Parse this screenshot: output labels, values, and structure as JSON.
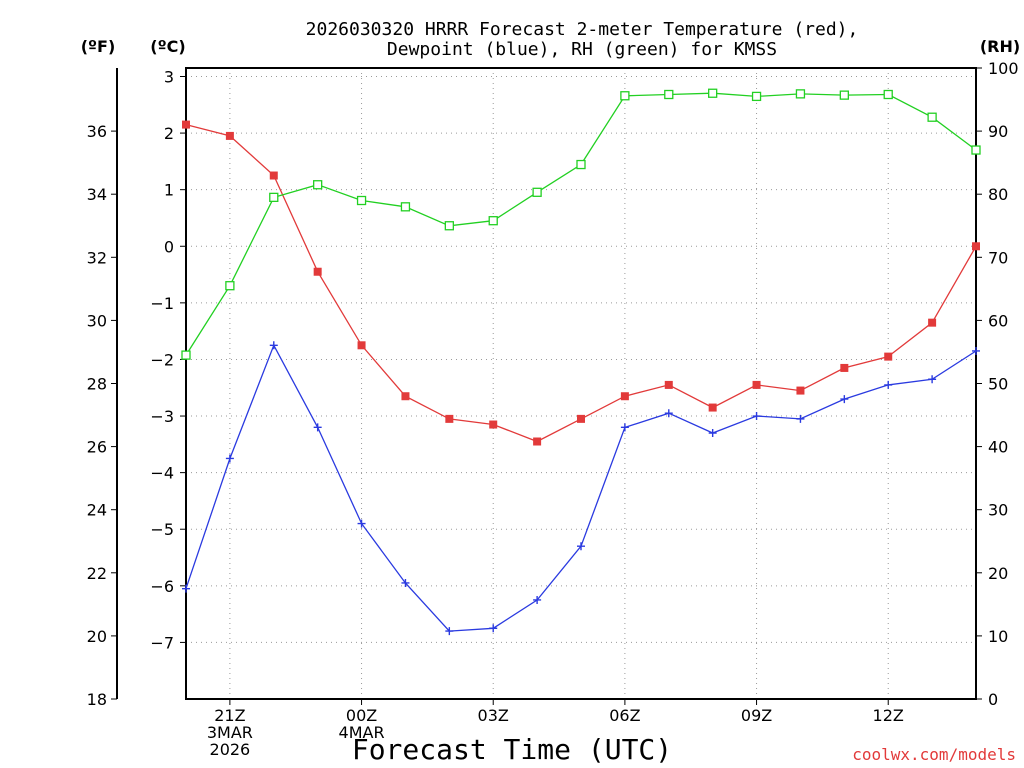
{
  "chart_data": {
    "type": "line",
    "title_line1": "2026030320 HRRR Forecast 2-meter Temperature (red),",
    "title_line2": "Dewpoint (blue), RH (green) for KMSS",
    "xlabel": "Forecast Time (UTC)",
    "credit": "coolwx.com/models",
    "units": {
      "left_outer": "(ºF)",
      "left_inner": "(ºC)",
      "right": "(RH)"
    },
    "x_hours": [
      20,
      21,
      22,
      23,
      24,
      25,
      26,
      27,
      28,
      29,
      30,
      31,
      32,
      33,
      34,
      35,
      36,
      37,
      38
    ],
    "x_ticks": [
      {
        "hour": 21,
        "lines": [
          "21Z",
          "3MAR",
          "2026"
        ]
      },
      {
        "hour": 24,
        "lines": [
          "00Z",
          "4MAR"
        ]
      },
      {
        "hour": 27,
        "lines": [
          "03Z"
        ]
      },
      {
        "hour": 30,
        "lines": [
          "06Z"
        ]
      },
      {
        "hour": 33,
        "lines": [
          "09Z"
        ]
      },
      {
        "hour": 36,
        "lines": [
          "12Z"
        ]
      }
    ],
    "celsius_axis": {
      "ylim": [
        -8.0,
        3.15
      ],
      "ticks": [
        3,
        2,
        1,
        0,
        -1,
        -2,
        -3,
        -4,
        -5,
        -6,
        -7
      ]
    },
    "fahrenheit_axis": {
      "ylim": [
        18,
        38
      ],
      "ticks": [
        18,
        20,
        22,
        24,
        26,
        28,
        30,
        32,
        34,
        36
      ]
    },
    "rh_axis": {
      "ylim": [
        0,
        100
      ],
      "ticks": [
        0,
        10,
        20,
        30,
        40,
        50,
        60,
        70,
        80,
        90,
        100
      ]
    },
    "colors": {
      "temperature": "#e23a3a",
      "dewpoint": "#2a3ae0",
      "rh": "#22d022",
      "grid": "#9a9a9a"
    },
    "series": [
      {
        "name": "Temperature",
        "axis": "celsius",
        "marker": "filled-square",
        "values": [
          2.15,
          1.95,
          1.25,
          -0.45,
          -1.75,
          -2.65,
          -3.05,
          -3.15,
          -3.45,
          -3.05,
          -2.65,
          -2.45,
          -2.85,
          -2.45,
          -2.55,
          -2.15,
          -1.95,
          -1.35,
          0.0
        ]
      },
      {
        "name": "Dewpoint",
        "axis": "celsius",
        "marker": "plus",
        "values": [
          -6.05,
          -3.75,
          -1.75,
          -3.2,
          -4.9,
          -5.95,
          -6.8,
          -6.75,
          -6.25,
          -5.3,
          -3.2,
          -2.95,
          -3.3,
          -3.0,
          -3.05,
          -2.7,
          -2.45,
          -2.35,
          -1.85
        ]
      },
      {
        "name": "RH",
        "axis": "rh",
        "marker": "open-square",
        "values": [
          54.5,
          65.5,
          79.5,
          81.5,
          79.0,
          78.0,
          75.0,
          75.8,
          80.3,
          84.7,
          95.6,
          95.8,
          96.0,
          95.5,
          95.9,
          95.7,
          95.8,
          92.2,
          87.0
        ]
      }
    ]
  }
}
